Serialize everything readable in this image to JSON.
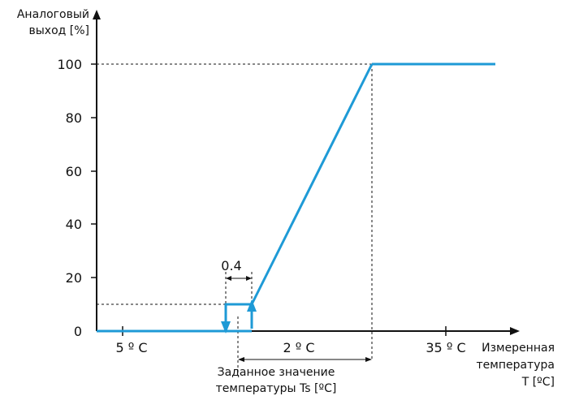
{
  "y_axis": {
    "title_line1": "Аналоговый",
    "title_line2": "выход [%]",
    "ticks": [
      "100",
      "80",
      "60",
      "40",
      "20",
      "0"
    ]
  },
  "x_axis": {
    "title_line1": "Измеренная",
    "title_line2": "температура",
    "title_line3": "T [ºC]",
    "label_left": "5 º C",
    "label_mid": "2 º C",
    "label_right": "35 º C"
  },
  "hysteresis_label": "0.4",
  "setpoint": {
    "line1": "Заданное значение",
    "line2": "температуры Ts [ºC]"
  },
  "colors": {
    "curve": "#1e9ad6",
    "axis": "#111111",
    "dashed": "#111111"
  }
}
